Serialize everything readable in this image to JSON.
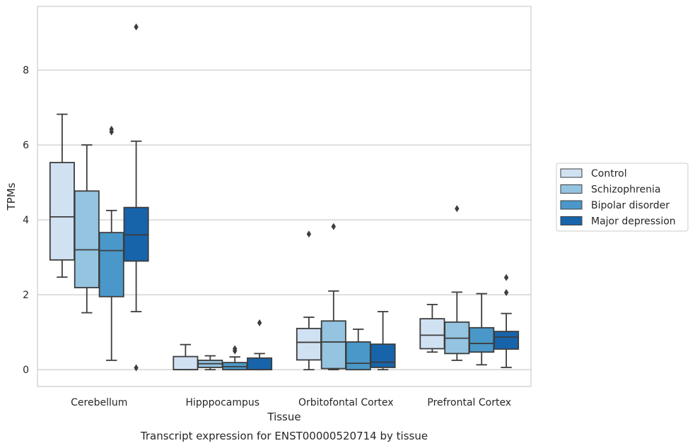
{
  "chart_data": {
    "type": "box",
    "title": "",
    "caption": "Transcript expression for ENST00000520714 by tissue",
    "xlabel": "Tissue",
    "ylabel": "TPMs",
    "ylim": [
      -0.45,
      9.7
    ],
    "yticks": [
      0,
      2,
      4,
      6,
      8
    ],
    "grid": "horizontal",
    "legend_position": "right",
    "categories": [
      "Cerebellum",
      "Hipppocampus",
      "Orbitofontal Cortex",
      "Prefrontal Cortex"
    ],
    "series": [
      {
        "name": "Control",
        "color": "#d0e1f2",
        "boxes": [
          {
            "whisker_low": 2.47,
            "q1": 2.93,
            "median": 4.08,
            "q3": 5.53,
            "whisker_high": 6.82,
            "outliers": []
          },
          {
            "whisker_low": 0.0,
            "q1": 0.0,
            "median": 0.0,
            "q3": 0.35,
            "whisker_high": 0.67,
            "outliers": []
          },
          {
            "whisker_low": 0.0,
            "q1": 0.26,
            "median": 0.73,
            "q3": 1.1,
            "whisker_high": 1.4,
            "outliers": [
              3.62
            ]
          },
          {
            "whisker_low": 0.47,
            "q1": 0.56,
            "median": 0.92,
            "q3": 1.36,
            "whisker_high": 1.74,
            "outliers": []
          }
        ]
      },
      {
        "name": "Schizophrenia",
        "color": "#94c4df",
        "boxes": [
          {
            "whisker_low": 1.52,
            "q1": 2.19,
            "median": 3.2,
            "q3": 4.77,
            "whisker_high": 6.0,
            "outliers": []
          },
          {
            "whisker_low": 0.0,
            "q1": 0.06,
            "median": 0.16,
            "q3": 0.25,
            "whisker_high": 0.37,
            "outliers": []
          },
          {
            "whisker_low": 0.0,
            "q1": 0.03,
            "median": 0.74,
            "q3": 1.3,
            "whisker_high": 2.1,
            "outliers": [
              3.82
            ]
          },
          {
            "whisker_low": 0.25,
            "q1": 0.43,
            "median": 0.84,
            "q3": 1.27,
            "whisker_high": 2.07,
            "outliers": [
              4.3
            ]
          }
        ]
      },
      {
        "name": "Bipolar disorder",
        "color": "#4a98c9",
        "boxes": [
          {
            "whisker_low": 0.25,
            "q1": 1.95,
            "median": 3.18,
            "q3": 3.66,
            "whisker_high": 4.25,
            "outliers": [
              6.35,
              6.42
            ]
          },
          {
            "whisker_low": 0.0,
            "q1": 0.0,
            "median": 0.08,
            "q3": 0.19,
            "whisker_high": 0.34,
            "outliers": [
              0.5,
              0.56
            ]
          },
          {
            "whisker_low": 0.0,
            "q1": 0.0,
            "median": 0.17,
            "q3": 0.74,
            "whisker_high": 1.08,
            "outliers": []
          },
          {
            "whisker_low": 0.13,
            "q1": 0.47,
            "median": 0.7,
            "q3": 1.12,
            "whisker_high": 2.03,
            "outliers": []
          }
        ]
      },
      {
        "name": "Major depression",
        "color": "#1764ab",
        "boxes": [
          {
            "whisker_low": 1.55,
            "q1": 2.9,
            "median": 3.6,
            "q3": 4.33,
            "whisker_high": 6.1,
            "outliers": [
              9.15,
              0.05
            ]
          },
          {
            "whisker_low": 0.0,
            "q1": 0.0,
            "median": 0.0,
            "q3": 0.31,
            "whisker_high": 0.43,
            "outliers": [
              1.25
            ]
          },
          {
            "whisker_low": 0.0,
            "q1": 0.06,
            "median": 0.2,
            "q3": 0.68,
            "whisker_high": 1.55,
            "outliers": []
          },
          {
            "whisker_low": 0.06,
            "q1": 0.55,
            "median": 0.87,
            "q3": 1.02,
            "whisker_high": 1.5,
            "outliers": [
              2.06,
              2.46
            ]
          }
        ]
      }
    ]
  }
}
